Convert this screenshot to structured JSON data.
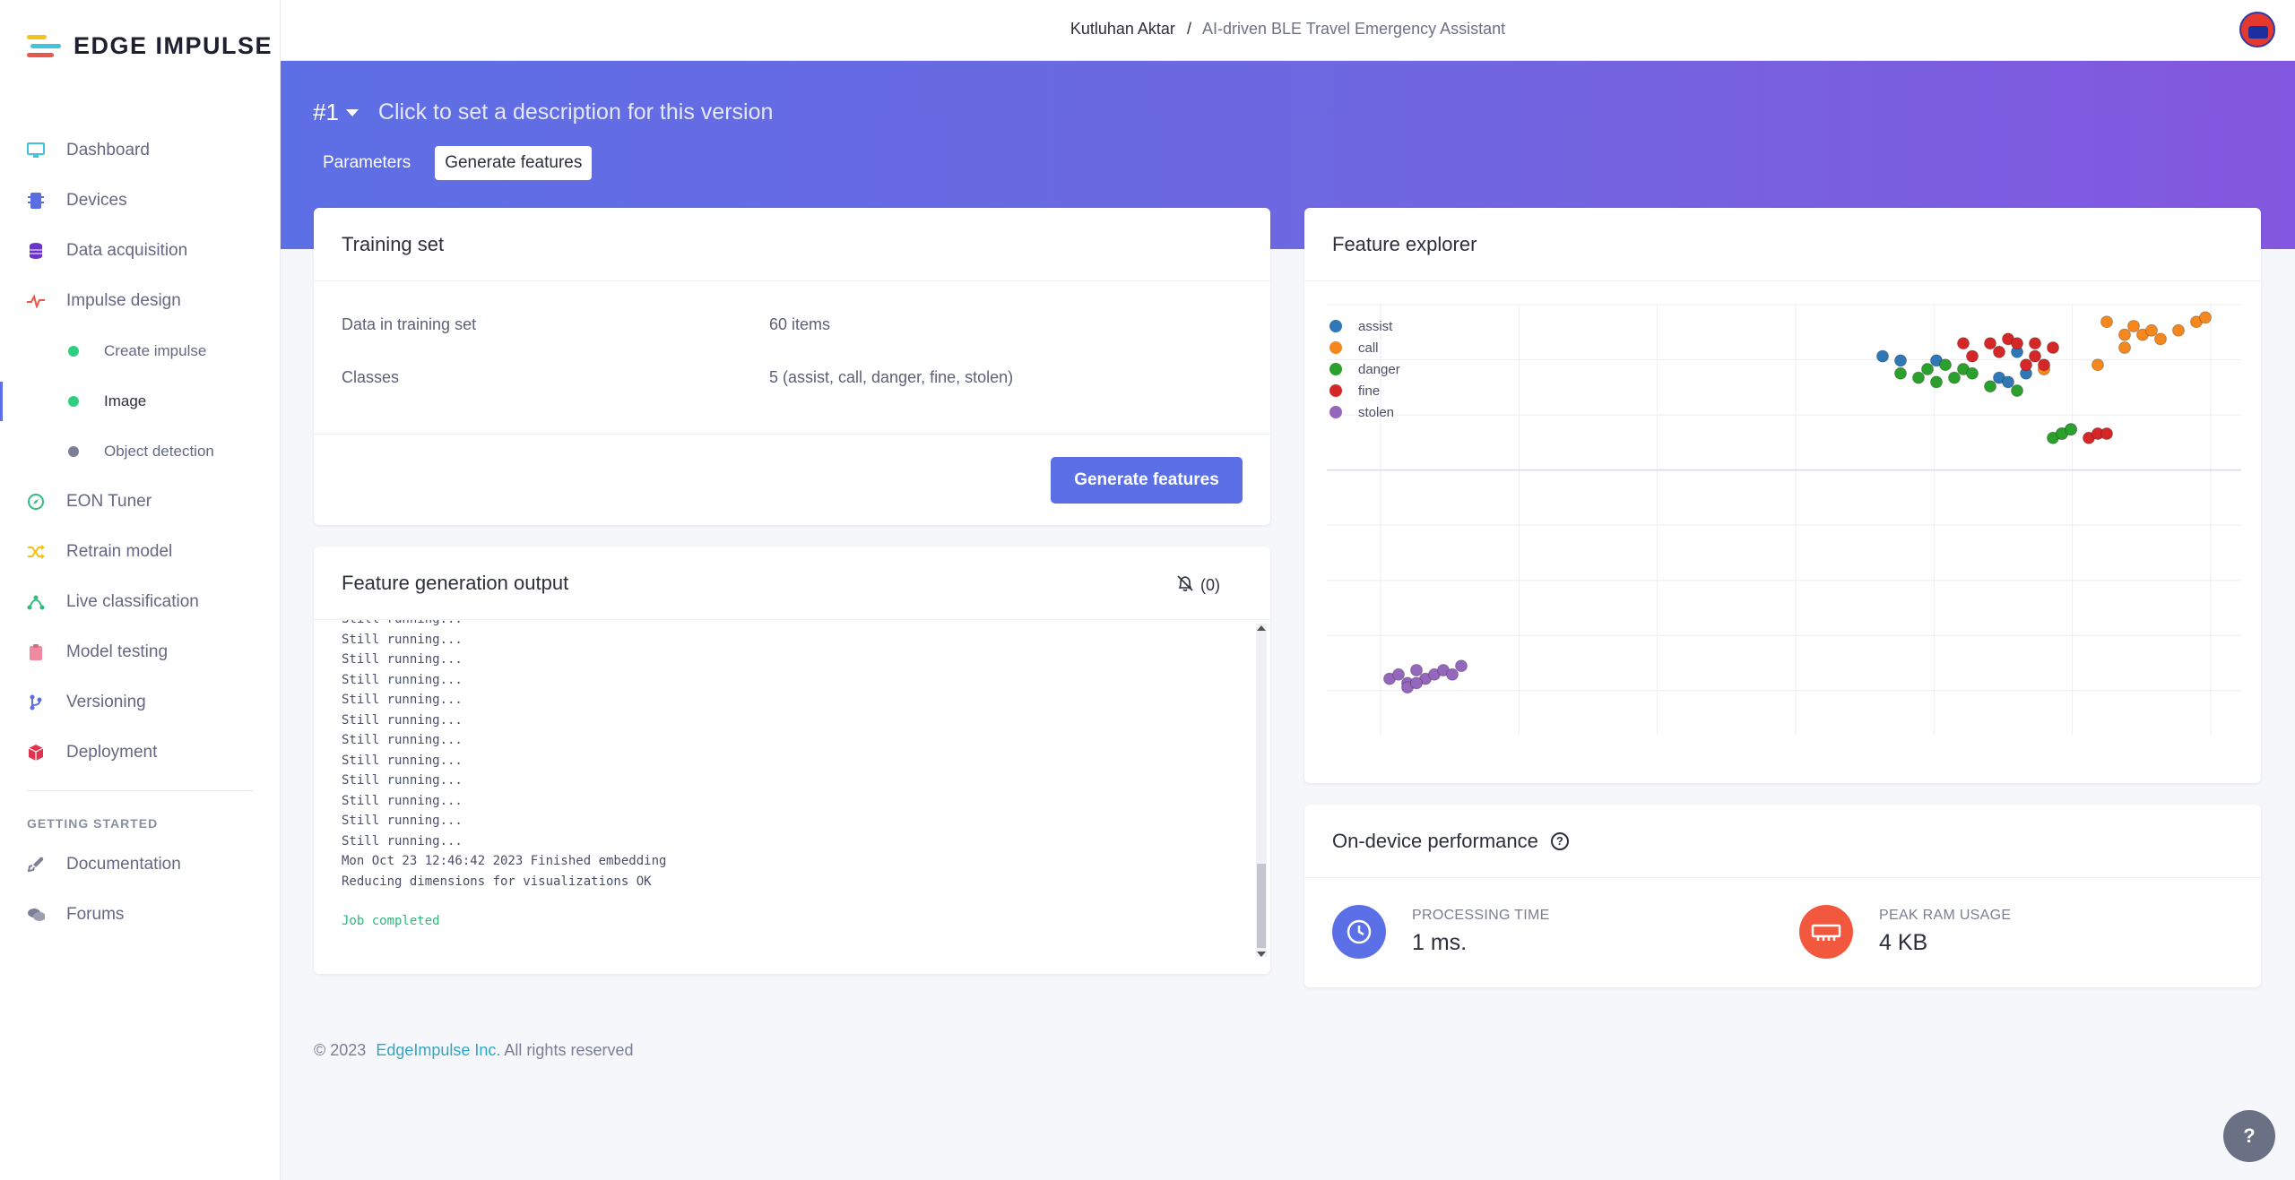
{
  "brand": {
    "name": "EDGE IMPULSE"
  },
  "sidebar": {
    "items": [
      {
        "label": "Dashboard",
        "icon": "monitor-icon",
        "color": "#3ec4dd"
      },
      {
        "label": "Devices",
        "icon": "chip-icon",
        "color": "#5a6ee2"
      },
      {
        "label": "Data acquisition",
        "icon": "database-icon",
        "color": "#6b33c9"
      },
      {
        "label": "Impulse design",
        "icon": "pulse-icon",
        "color": "#e8584a"
      },
      {
        "label": "EON Tuner",
        "icon": "compass-icon",
        "color": "#2fbf7b"
      },
      {
        "label": "Retrain model",
        "icon": "shuffle-icon",
        "color": "#f2c31b"
      },
      {
        "label": "Live classification",
        "icon": "nodes-icon",
        "color": "#2fbf7b"
      },
      {
        "label": "Model testing",
        "icon": "clipboard-icon",
        "color": "#f08aa0"
      },
      {
        "label": "Versioning",
        "icon": "branch-icon",
        "color": "#5a6ee2"
      },
      {
        "label": "Deployment",
        "icon": "cube-icon",
        "color": "#e0334f"
      }
    ],
    "sub_items": [
      {
        "label": "Create impulse",
        "color": "#2fcf82"
      },
      {
        "label": "Image",
        "color": "#2fcf82"
      },
      {
        "label": "Object detection",
        "color": "#7c8096"
      }
    ],
    "getting_started": "GETTING STARTED",
    "help_items": [
      {
        "label": "Documentation",
        "icon": "rocket-icon"
      },
      {
        "label": "Forums",
        "icon": "chat-icon"
      }
    ]
  },
  "topbar": {
    "user": "Kutluhan Aktar",
    "separator": "/",
    "project": "AI-driven BLE Travel Emergency Assistant"
  },
  "version": {
    "label": "#1",
    "description": "Click to set a description for this version"
  },
  "tabs": [
    {
      "label": "Parameters"
    },
    {
      "label": "Generate features"
    }
  ],
  "training": {
    "title": "Training set",
    "data_label": "Data in training set",
    "data_value": "60 items",
    "classes_label": "Classes",
    "classes_value": "5 (assist, call, danger, fine, stolen)",
    "button": "Generate features"
  },
  "output": {
    "title": "Feature generation output",
    "notif_count": "(0)",
    "lines": [
      "Still running...",
      "Still running...",
      "Still running...",
      "Still running...",
      "Still running...",
      "Still running...",
      "Still running...",
      "Still running...",
      "Still running...",
      "Still running...",
      "Still running...",
      "Still running..."
    ],
    "finished": "Mon Oct 23 12:46:42 2023 Finished embedding",
    "reducing": "Reducing dimensions for visualizations OK",
    "completed": "Job completed"
  },
  "explorer": {
    "title": "Feature explorer"
  },
  "chart_data": {
    "type": "scatter",
    "xlim": [
      0,
      1
    ],
    "ylim": [
      0,
      1
    ],
    "grid": true,
    "legend": "top-left",
    "series": [
      {
        "name": "assist",
        "color": "#2f77b5",
        "points": [
          [
            0.62,
            0.88
          ],
          [
            0.64,
            0.87
          ],
          [
            0.68,
            0.87
          ],
          [
            0.75,
            0.83
          ],
          [
            0.76,
            0.82
          ],
          [
            0.77,
            0.89
          ],
          [
            0.78,
            0.84
          ],
          [
            0.82,
            0.7
          ],
          [
            0.83,
            0.71
          ]
        ]
      },
      {
        "name": "call",
        "color": "#f5871f",
        "points": [
          [
            0.87,
            0.96
          ],
          [
            0.89,
            0.93
          ],
          [
            0.9,
            0.95
          ],
          [
            0.91,
            0.93
          ],
          [
            0.92,
            0.94
          ],
          [
            0.93,
            0.92
          ],
          [
            0.95,
            0.94
          ],
          [
            0.97,
            0.96
          ],
          [
            0.98,
            0.97
          ],
          [
            0.86,
            0.86
          ],
          [
            0.89,
            0.9
          ],
          [
            0.8,
            0.85
          ]
        ]
      },
      {
        "name": "danger",
        "color": "#2ca02c",
        "points": [
          [
            0.64,
            0.84
          ],
          [
            0.66,
            0.83
          ],
          [
            0.67,
            0.85
          ],
          [
            0.68,
            0.82
          ],
          [
            0.69,
            0.86
          ],
          [
            0.7,
            0.83
          ],
          [
            0.71,
            0.85
          ],
          [
            0.72,
            0.84
          ],
          [
            0.74,
            0.81
          ],
          [
            0.77,
            0.8
          ],
          [
            0.81,
            0.69
          ],
          [
            0.82,
            0.7
          ],
          [
            0.83,
            0.71
          ]
        ]
      },
      {
        "name": "fine",
        "color": "#d62728",
        "points": [
          [
            0.71,
            0.91
          ],
          [
            0.72,
            0.88
          ],
          [
            0.74,
            0.91
          ],
          [
            0.75,
            0.89
          ],
          [
            0.76,
            0.92
          ],
          [
            0.77,
            0.91
          ],
          [
            0.79,
            0.91
          ],
          [
            0.79,
            0.88
          ],
          [
            0.8,
            0.86
          ],
          [
            0.81,
            0.9
          ],
          [
            0.78,
            0.86
          ],
          [
            0.85,
            0.69
          ],
          [
            0.86,
            0.7
          ],
          [
            0.87,
            0.7
          ]
        ]
      },
      {
        "name": "stolen",
        "color": "#9467bd",
        "points": [
          [
            0.07,
            0.13
          ],
          [
            0.08,
            0.14
          ],
          [
            0.09,
            0.12
          ],
          [
            0.1,
            0.15
          ],
          [
            0.11,
            0.13
          ],
          [
            0.12,
            0.14
          ],
          [
            0.13,
            0.15
          ],
          [
            0.09,
            0.11
          ],
          [
            0.1,
            0.12
          ],
          [
            0.14,
            0.14
          ],
          [
            0.15,
            0.16
          ]
        ]
      }
    ]
  },
  "performance": {
    "title": "On-device performance",
    "processing_label": "PROCESSING TIME",
    "processing_value": "1 ms.",
    "ram_label": "PEAK RAM USAGE",
    "ram_value": "4 KB",
    "processing_color": "#5b6fe6",
    "ram_color": "#f2583e"
  },
  "footer": {
    "copyright": "© 2023",
    "company": "EdgeImpulse Inc.",
    "rights": "All rights reserved"
  },
  "help_button": "?"
}
